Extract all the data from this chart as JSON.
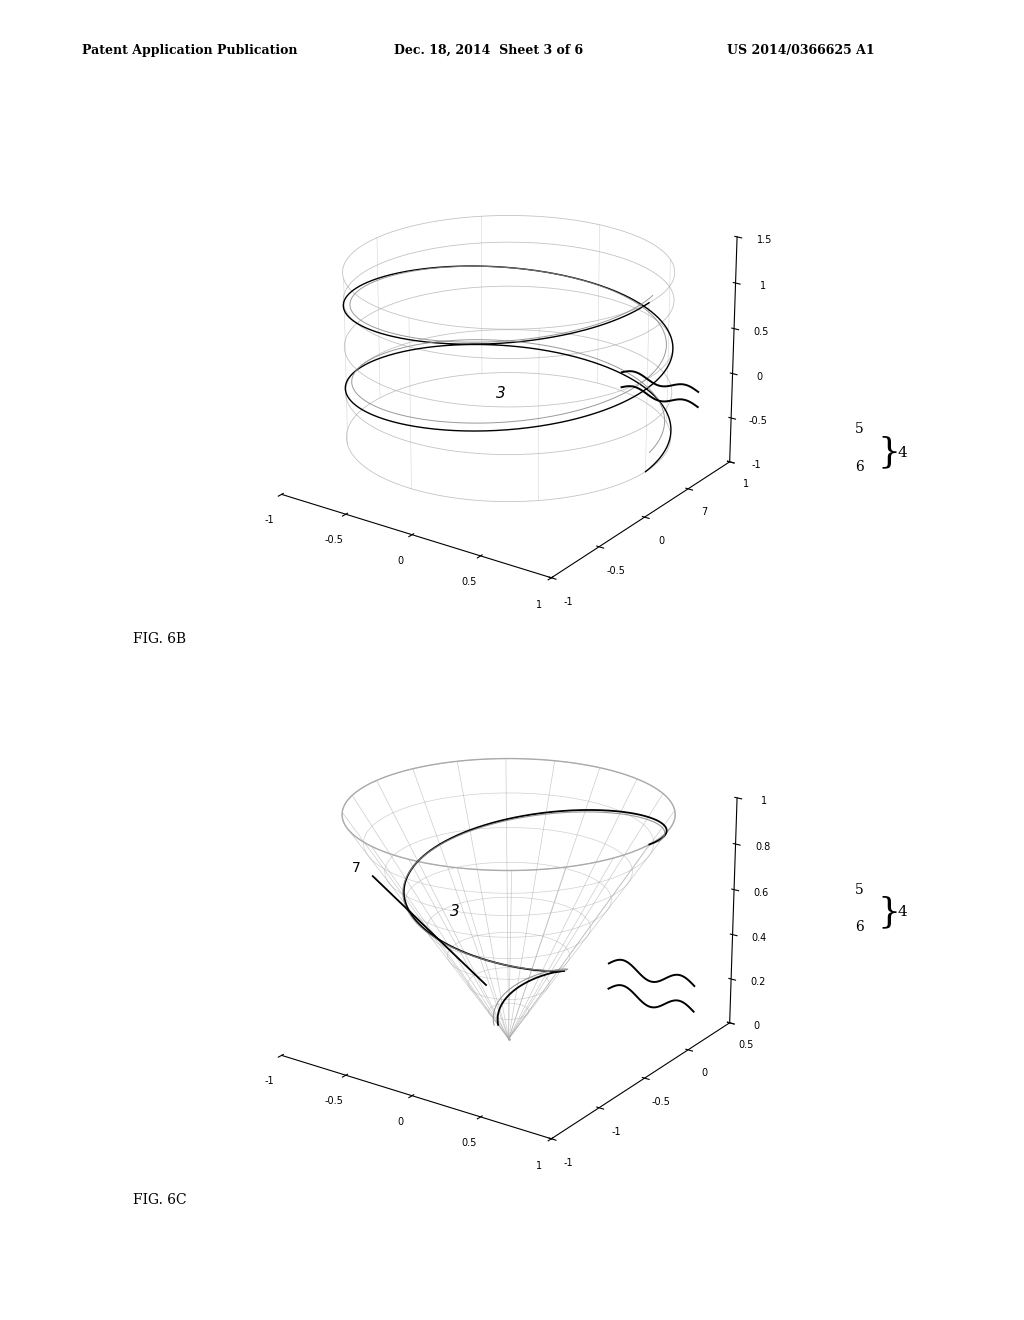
{
  "background_color": "#ffffff",
  "header_left": "Patent Application Publication",
  "header_middle": "Dec. 18, 2014  Sheet 3 of 6",
  "header_right": "US 2014/0366625 A1",
  "fig6b_label": "FIG. 6B",
  "fig6c_label": "FIG. 6C",
  "label3": "3",
  "label4": "4",
  "label5": "5",
  "label6": "6",
  "label7": "7",
  "fig6b_zlim": [
    -1,
    1.5
  ],
  "fig6b_zticks": [
    -1,
    -0.5,
    0,
    0.5,
    1,
    1.5
  ],
  "fig6b_ztick_labels": [
    "-1",
    "-0.5",
    "0",
    "0.5",
    "1",
    "1.5"
  ],
  "fig6b_xlim": [
    -1,
    1
  ],
  "fig6b_ylim": [
    -1,
    1
  ],
  "fig6c_zlim": [
    0,
    1
  ],
  "fig6c_zticks": [
    0,
    0.2,
    0.4,
    0.6,
    0.8,
    1.0
  ],
  "fig6c_ztick_labels": [
    "0",
    "0.2",
    "0.4",
    "0.6",
    "0.8",
    "1"
  ],
  "line_color_light": "#aaaaaa",
  "line_color_dark": "#000000",
  "line_color_mid": "#888888"
}
